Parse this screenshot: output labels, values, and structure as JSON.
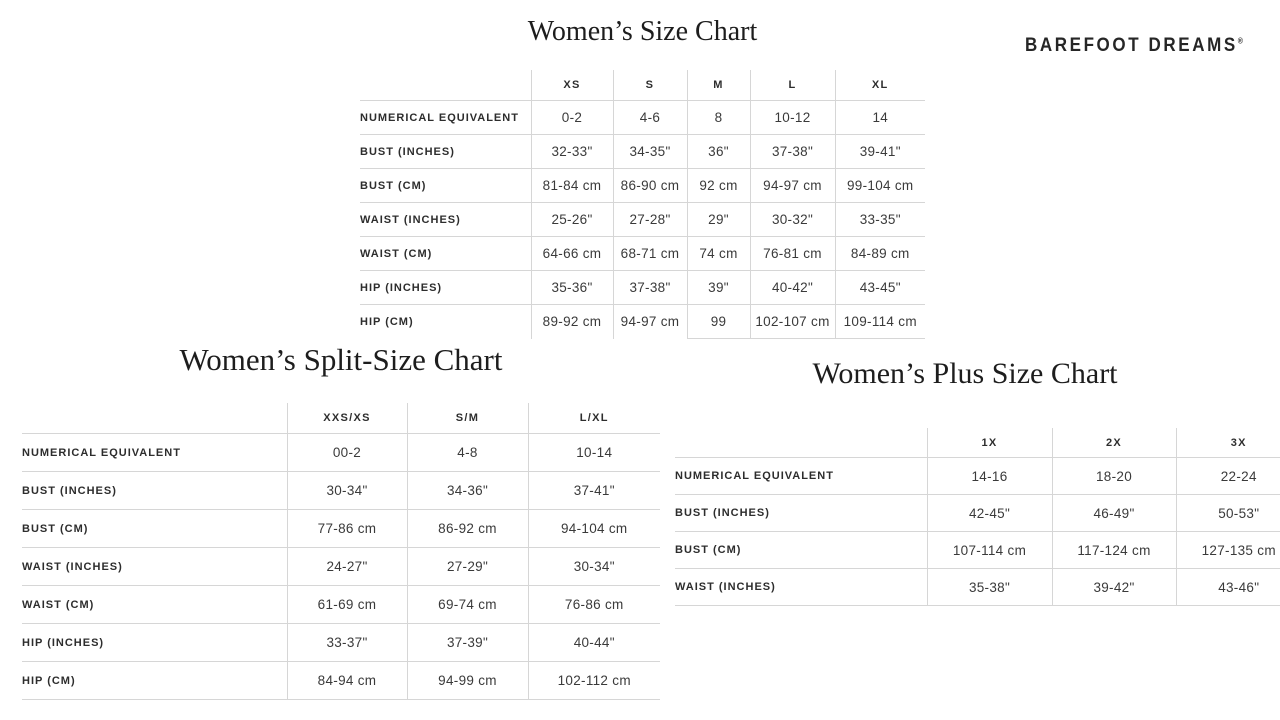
{
  "logo": {
    "text": "BAREFOOT DREAMS",
    "registered": "®"
  },
  "charts": {
    "standard": {
      "title": "Women’s Size Chart",
      "columns": [
        "XS",
        "S",
        "M",
        "L",
        "XL"
      ],
      "rows": [
        {
          "label": "NUMERICAL EQUIVALENT",
          "values": [
            "0-2",
            "4-6",
            "8",
            "10-12",
            "14"
          ]
        },
        {
          "label": "BUST (INCHES)",
          "values": [
            "32-33\"",
            "34-35\"",
            "36\"",
            "37-38\"",
            "39-41\""
          ]
        },
        {
          "label": "BUST (CM)",
          "values": [
            "81-84 cm",
            "86-90 cm",
            "92 cm",
            "94-97 cm",
            "99-104 cm"
          ]
        },
        {
          "label": "WAIST (INCHES)",
          "values": [
            "25-26\"",
            "27-28\"",
            "29\"",
            "30-32\"",
            "33-35\""
          ]
        },
        {
          "label": "WAIST (CM)",
          "values": [
            "64-66 cm",
            "68-71 cm",
            "74 cm",
            "76-81 cm",
            "84-89 cm"
          ]
        },
        {
          "label": "HIP (INCHES)",
          "values": [
            "35-36\"",
            "37-38\"",
            "39\"",
            "40-42\"",
            "43-45\""
          ]
        },
        {
          "label": "HIP (CM)",
          "values": [
            "89-92 cm",
            "94-97 cm",
            "99",
            "102-107 cm",
            "109-114 cm"
          ]
        }
      ]
    },
    "split": {
      "title": "Women’s Split-Size Chart",
      "columns": [
        "XXS/XS",
        "S/M",
        "L/XL"
      ],
      "rows": [
        {
          "label": "NUMERICAL EQUIVALENT",
          "values": [
            "00-2",
            "4-8",
            "10-14"
          ]
        },
        {
          "label": "BUST (INCHES)",
          "values": [
            "30-34\"",
            "34-36\"",
            "37-41\""
          ]
        },
        {
          "label": "BUST (CM)",
          "values": [
            "77-86 cm",
            "86-92 cm",
            "94-104 cm"
          ]
        },
        {
          "label": "WAIST (INCHES)",
          "values": [
            "24-27\"",
            "27-29\"",
            "30-34\""
          ]
        },
        {
          "label": "WAIST (CM)",
          "values": [
            "61-69 cm",
            "69-74 cm",
            "76-86 cm"
          ]
        },
        {
          "label": "HIP (INCHES)",
          "values": [
            "33-37\"",
            "37-39\"",
            "40-44\""
          ]
        },
        {
          "label": "HIP (CM)",
          "values": [
            "84-94 cm",
            "94-99 cm",
            "102-112 cm"
          ]
        }
      ]
    },
    "plus": {
      "title": "Women’s Plus Size Chart",
      "columns": [
        "1X",
        "2X",
        "3X"
      ],
      "rows": [
        {
          "label": "NUMERICAL EQUIVALENT",
          "values": [
            "14-16",
            "18-20",
            "22-24"
          ]
        },
        {
          "label": "BUST (INCHES)",
          "values": [
            "42-45\"",
            "46-49\"",
            "50-53\""
          ]
        },
        {
          "label": "BUST (CM)",
          "values": [
            "107-114 cm",
            "117-124 cm",
            "127-135 cm"
          ]
        },
        {
          "label": "WAIST (INCHES)",
          "values": [
            "35-38\"",
            "39-42\"",
            "43-46\""
          ]
        }
      ]
    }
  }
}
